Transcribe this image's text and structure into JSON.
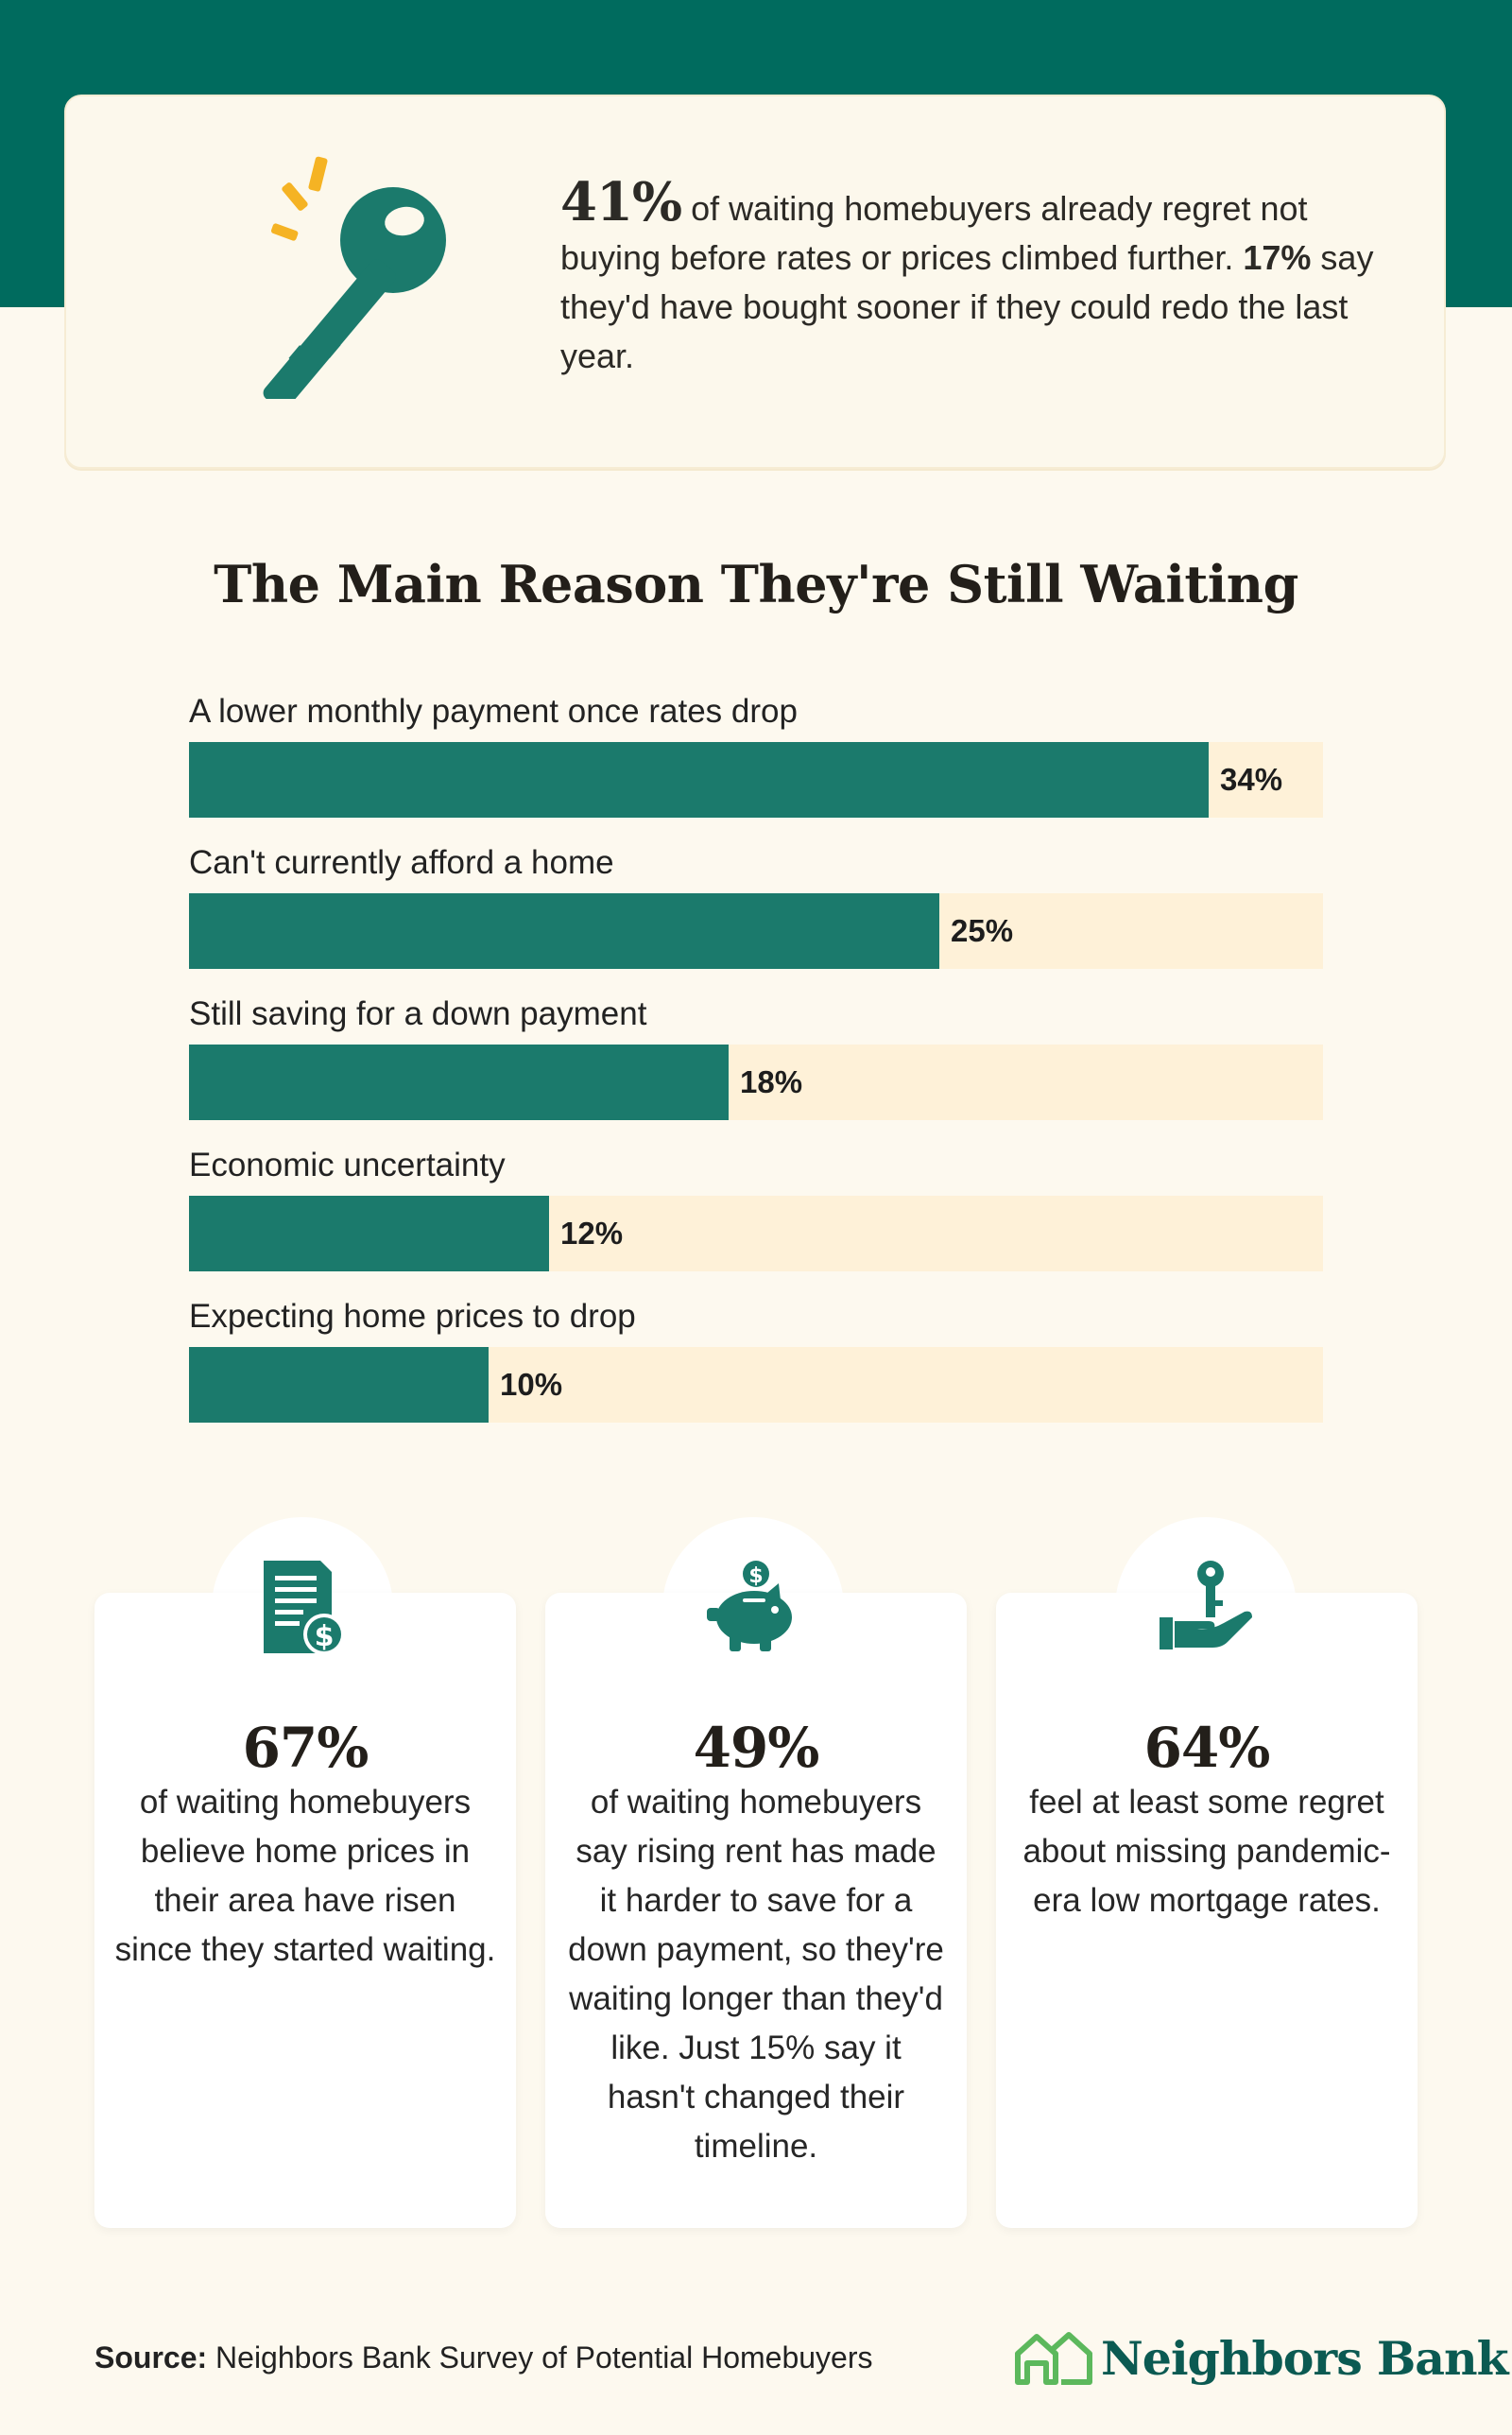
{
  "hero": {
    "stat": "41%",
    "text_1": " of waiting homebuyers already regret not buying before rates or prices climbed further. ",
    "stat_2": "17%",
    "text_2": " say they'd have bought sooner if they could redo the last year."
  },
  "chart_data": {
    "type": "bar",
    "orientation": "horizontal",
    "title": "The Main Reason They're Still Waiting",
    "categories": [
      "A lower monthly payment once rates drop",
      "Can't currently afford a home",
      "Still saving for a down payment",
      "Economic uncertainty",
      "Expecting home prices to drop"
    ],
    "values": [
      34,
      25,
      18,
      12,
      10
    ],
    "value_labels": [
      "34%",
      "25%",
      "18%",
      "12%",
      "10%"
    ],
    "xlim": [
      0,
      37.8
    ],
    "grid": false,
    "colors": {
      "bar": "#1b7a6c",
      "track": "#fef1d8"
    }
  },
  "stats": [
    {
      "icon": "document-dollar-icon",
      "value": "67%",
      "text": "of waiting homebuyers believe home prices in their area have risen since they started waiting."
    },
    {
      "icon": "piggy-bank-icon",
      "value": "49%",
      "text": "of waiting homebuyers say rising rent has made it harder to save for a down payment, so they're waiting longer than they'd like. Just 15% say it hasn't changed their timeline."
    },
    {
      "icon": "hand-key-icon",
      "value": "64%",
      "text": "feel at least some regret about missing pandemic-era low mortgage rates."
    }
  ],
  "footer": {
    "source_label": "Source:",
    "source_text": " Neighbors Bank Survey of Potential Homebuyers",
    "logo_text": "Neighbors Bank"
  },
  "colors": {
    "band": "#006b5e",
    "accent": "#1b7a6c",
    "spark": "#f5b324",
    "background": "#fdf9ef"
  }
}
